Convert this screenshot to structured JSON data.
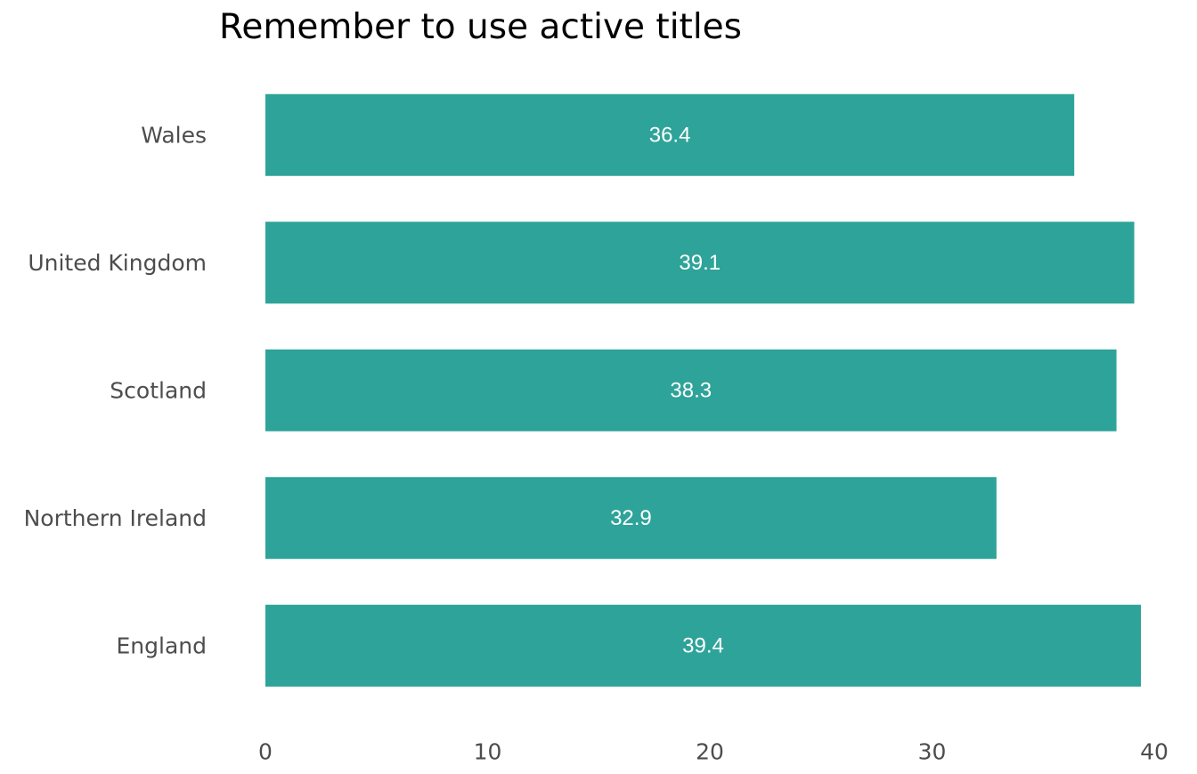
{
  "chart_data": {
    "type": "bar",
    "orientation": "horizontal",
    "title": "Remember to use active titles",
    "xlabel": "",
    "ylabel": "",
    "categories": [
      "England",
      "Northern Ireland",
      "Scotland",
      "United Kingdom",
      "Wales"
    ],
    "values": [
      39.4,
      32.9,
      38.3,
      39.1,
      36.4
    ],
    "data_labels": [
      "39.4",
      "32.9",
      "38.3",
      "39.1",
      "36.4"
    ],
    "xlim": [
      0,
      40
    ],
    "x_ticks": [
      0,
      10,
      20,
      30,
      40
    ],
    "x_tick_labels": [
      "0",
      "10",
      "20",
      "30",
      "40"
    ],
    "grid": false,
    "legend": "none",
    "colors": {
      "bar": "#2ea399",
      "data_label": "#ffffff",
      "axis_text": "#4d4d4d",
      "title": "#000000"
    }
  }
}
